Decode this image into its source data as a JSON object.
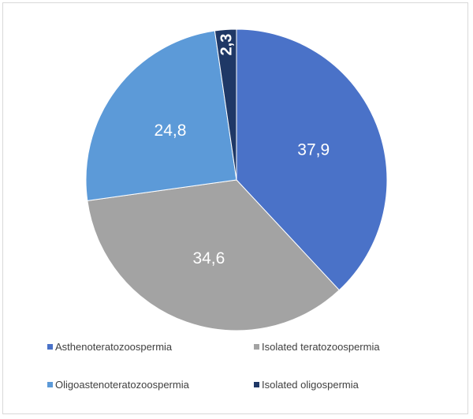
{
  "chart_data": {
    "type": "pie",
    "title": "",
    "slices": [
      {
        "label": "Asthenoteratozoospermia",
        "value": 37.9,
        "display": "37,9",
        "color": "#4a72c8"
      },
      {
        "label": "Isolated teratozoospermia",
        "value": 34.6,
        "display": "34,6",
        "color": "#a3a3a3"
      },
      {
        "label": "Oligoastenoteratozoospermia",
        "value": 24.8,
        "display": "24,8",
        "color": "#5c9ad8"
      },
      {
        "label": "Isolated oligospermia",
        "value": 2.3,
        "display": "2,3",
        "color": "#1f3866"
      }
    ],
    "legend_position": "bottom"
  }
}
